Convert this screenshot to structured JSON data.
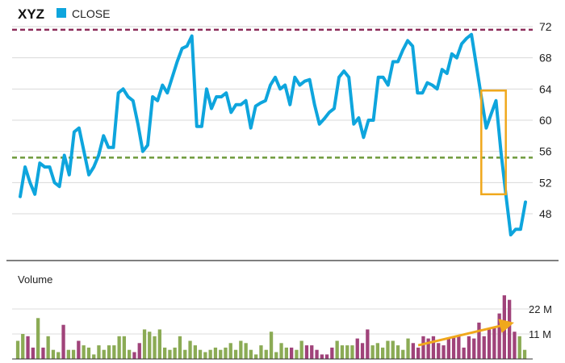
{
  "chart_data": [
    {
      "type": "line",
      "title": "XYZ",
      "legend": [
        {
          "label": "CLOSE",
          "color": "#0ea5dd"
        }
      ],
      "ylim": [
        43,
        73
      ],
      "yticks": [
        48,
        52,
        56,
        60,
        64,
        68,
        72
      ],
      "grid": true,
      "reference_lines": [
        {
          "value": 71.6,
          "color": "#8c2d5a",
          "style": "dashed"
        },
        {
          "value": 55.2,
          "color": "#6e9a3c",
          "style": "dashed"
        }
      ],
      "highlight_box": {
        "x_range": [
          94,
          99
        ],
        "y_range": [
          50.5,
          63.8
        ],
        "color": "#f0a81c"
      },
      "series": [
        {
          "color": "#0ea5dd",
          "values": [
            50.2,
            54.0,
            52.0,
            50.5,
            54.5,
            54.0,
            54.0,
            52.0,
            51.5,
            55.5,
            53.0,
            58.5,
            59.0,
            56.0,
            53.0,
            54.0,
            55.5,
            58.0,
            56.5,
            56.5,
            63.5,
            64.0,
            63.0,
            62.5,
            59.5,
            56.0,
            56.8,
            63.0,
            62.5,
            64.5,
            63.5,
            65.5,
            67.5,
            69.2,
            69.5,
            70.8,
            59.2,
            59.2,
            64.0,
            61.5,
            63.0,
            63.0,
            63.5,
            61.0,
            62.0,
            62.0,
            62.5,
            59.0,
            61.8,
            62.2,
            62.5,
            64.5,
            65.5,
            64.0,
            64.5,
            62.0,
            65.5,
            64.5,
            65.0,
            65.2,
            62.0,
            59.5,
            60.2,
            61.0,
            61.5,
            65.5,
            66.3,
            65.5,
            59.5,
            60.3,
            57.8,
            60.0,
            60.0,
            65.5,
            65.5,
            64.5,
            67.5,
            67.5,
            69.0,
            70.2,
            69.5,
            63.5,
            63.5,
            64.8,
            64.5,
            64.0,
            66.5,
            66.0,
            68.5,
            68.0,
            69.8,
            70.5,
            71.0,
            67.0,
            63.0,
            59.0,
            60.8,
            62.5,
            56.0,
            50.5,
            45.3,
            46.0,
            46.0,
            49.5
          ]
        }
      ]
    },
    {
      "type": "bar",
      "title": "Volume",
      "yticks": [
        {
          "value": 11,
          "label": "11 M"
        },
        {
          "value": 22,
          "label": "22 M"
        }
      ],
      "ylim": [
        0,
        30
      ],
      "colors": {
        "up": "#8bab55",
        "down": "#a0437a",
        "arrow": "#f0a81c"
      },
      "trend_arrow": {
        "from": [
          79,
          6
        ],
        "to": [
          97,
          15.5
        ]
      },
      "values": [
        8,
        11,
        10,
        5,
        18,
        5,
        10,
        4,
        3,
        15,
        4,
        4,
        8,
        6,
        5,
        2,
        6,
        4,
        6,
        6,
        10,
        10,
        4,
        3,
        7,
        13,
        12,
        10,
        13,
        5,
        4,
        5,
        10,
        4,
        8,
        6,
        4,
        3,
        4,
        5,
        4,
        5,
        7,
        4,
        8,
        7,
        4,
        2,
        6,
        4,
        12,
        3,
        7,
        5,
        5,
        4,
        8,
        6,
        6,
        4,
        2,
        2,
        5,
        8,
        6,
        6,
        6,
        9,
        7,
        13,
        6,
        7,
        5,
        8,
        8,
        6,
        4,
        9,
        7,
        5,
        10,
        9,
        10,
        7,
        6,
        9,
        10,
        10,
        5,
        10,
        9,
        16,
        10,
        13,
        14,
        20,
        28,
        26,
        12,
        10,
        4
      ],
      "directions": [
        "up",
        "up",
        "down",
        "down",
        "up",
        "down",
        "up",
        "up",
        "up",
        "down",
        "up",
        "up",
        "down",
        "up",
        "up",
        "up",
        "up",
        "up",
        "up",
        "up",
        "up",
        "up",
        "up",
        "down",
        "down",
        "up",
        "up",
        "up",
        "up",
        "up",
        "up",
        "up",
        "up",
        "up",
        "up",
        "up",
        "up",
        "up",
        "up",
        "up",
        "up",
        "up",
        "up",
        "up",
        "up",
        "up",
        "up",
        "up",
        "up",
        "up",
        "up",
        "up",
        "up",
        "up",
        "down",
        "up",
        "up",
        "down",
        "down",
        "down",
        "down",
        "down",
        "down",
        "up",
        "up",
        "up",
        "up",
        "down",
        "down",
        "down",
        "up",
        "up",
        "up",
        "up",
        "up",
        "up",
        "up",
        "up",
        "down",
        "down",
        "down",
        "down",
        "down",
        "down",
        "down",
        "down",
        "down",
        "down",
        "down",
        "down",
        "down",
        "down",
        "down",
        "down",
        "down",
        "down",
        "down",
        "down",
        "down",
        "up",
        "up"
      ]
    }
  ]
}
